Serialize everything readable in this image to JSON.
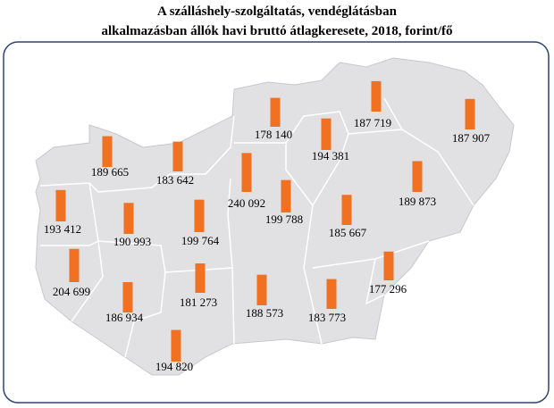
{
  "title": [
    "A szálláshely-szolgáltatás, vendéglátásban",
    "alkalmazásban állók havi bruttó átlagkeresete, 2018, forint/fő"
  ],
  "regions": [
    {
      "value": 189665,
      "label": "189 665"
    },
    {
      "value": 183642,
      "label": "183 642"
    },
    {
      "value": 178140,
      "label": "178 140"
    },
    {
      "value": 187719,
      "label": "187 719"
    },
    {
      "value": 187907,
      "label": "187 907"
    },
    {
      "value": 194381,
      "label": "194 381"
    },
    {
      "value": 240092,
      "label": "240 092"
    },
    {
      "value": 199788,
      "label": "199 788"
    },
    {
      "value": 189873,
      "label": "189 873"
    },
    {
      "value": 193412,
      "label": "193 412"
    },
    {
      "value": 190993,
      "label": "190 993"
    },
    {
      "value": 199764,
      "label": "199 764"
    },
    {
      "value": 185667,
      "label": "185 667"
    },
    {
      "value": 204699,
      "label": "204 699"
    },
    {
      "value": 186934,
      "label": "186 934"
    },
    {
      "value": 181273,
      "label": "181 273"
    },
    {
      "value": 188573,
      "label": "188 573"
    },
    {
      "value": 183773,
      "label": "183 773"
    },
    {
      "value": 177296,
      "label": "177 296"
    },
    {
      "value": 194820,
      "label": "194 820"
    }
  ],
  "bar_color": "#f07122"
}
